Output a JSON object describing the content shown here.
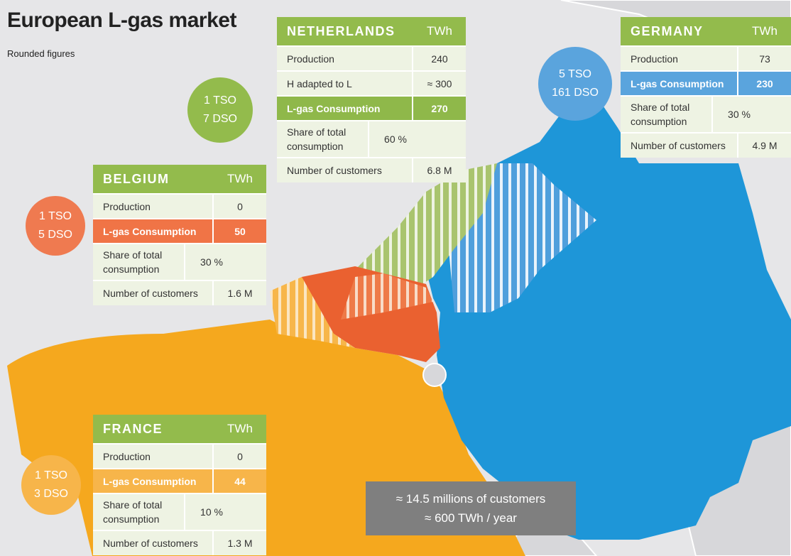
{
  "header": {
    "title": "European L-gas market",
    "subtitle": "Rounded figures"
  },
  "countries": [
    {
      "name": "NETHERLANDS",
      "unit": "TWh",
      "operators": [
        "1 TSO",
        "7 DSO"
      ],
      "rows": [
        [
          "Production",
          "240"
        ],
        [
          "H adapted to L",
          "≈ 300"
        ],
        [
          "L-gas Consumption",
          "270"
        ],
        [
          "Share of total consumption",
          "60 %"
        ],
        [
          "Number of customers",
          "6.8 M"
        ]
      ]
    },
    {
      "name": "GERMANY",
      "unit": "TWh",
      "operators": [
        "5 TSO",
        "161 DSO"
      ],
      "rows": [
        [
          "Production",
          "73"
        ],
        [
          "L-gas Consumption",
          "230"
        ],
        [
          "Share of total consumption",
          "30 %"
        ],
        [
          "Number of customers",
          "4.9 M"
        ]
      ]
    },
    {
      "name": "BELGIUM",
      "unit": "TWh",
      "operators": [
        "1 TSO",
        "5 DSO"
      ],
      "rows": [
        [
          "Production",
          "0"
        ],
        [
          "L-gas Consumption",
          "50"
        ],
        [
          "Share of total consumption",
          "30 %"
        ],
        [
          "Number of customers",
          "1.6 M"
        ]
      ]
    },
    {
      "name": "FRANCE",
      "unit": "TWh",
      "operators": [
        "1 TSO",
        "3 DSO"
      ],
      "rows": [
        [
          "Production",
          "0"
        ],
        [
          "L-gas Consumption",
          "44"
        ],
        [
          "Share of total consumption",
          "10 %"
        ],
        [
          "Number of customers",
          "1.3 M"
        ]
      ]
    }
  ],
  "summary": [
    "≈ 14.5 millions of customers",
    "≈ 600 TWh / year"
  ]
}
